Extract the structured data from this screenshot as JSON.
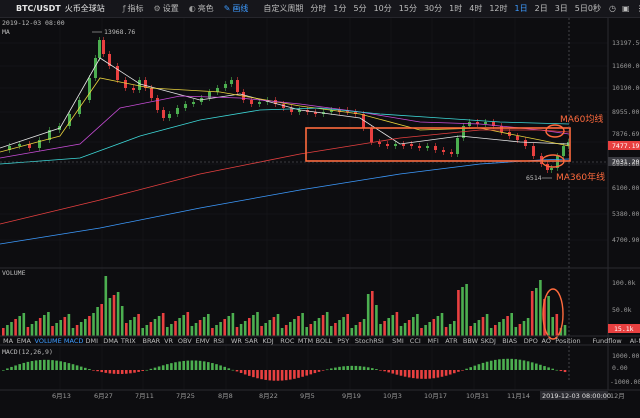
{
  "toolbar": {
    "symbol": "BTC/USDT",
    "exchange": "火币全球站",
    "buttons": [
      {
        "name": "indicator-button",
        "icon": "fx-icon",
        "glyph": "ƒ",
        "label": "指标"
      },
      {
        "name": "settings-button",
        "icon": "gear-icon",
        "glyph": "⚙",
        "label": "设置"
      },
      {
        "name": "color-button",
        "icon": "palette-icon",
        "glyph": "◐",
        "label": "亮色"
      },
      {
        "name": "draw-button",
        "icon": "pen-icon",
        "glyph": "✎",
        "label": "画线",
        "active": true
      }
    ],
    "periods": [
      "自定义周期",
      "分时",
      "1分",
      "5分",
      "10分",
      "15分",
      "30分",
      "1时",
      "4时",
      "12时",
      "1日",
      "2日",
      "3日",
      "5日"
    ],
    "active_period": "1日",
    "countdown": "0秒",
    "right_icons": [
      "clock-icon",
      "lock-icon",
      "more-icon"
    ]
  },
  "price_pane": {
    "header": "2019-12-03 08:00",
    "ma_label": "MA",
    "y_ticks": [
      "13197.50",
      "11600.00",
      "10190.00",
      "8955.00",
      "7876.69",
      "6930.00",
      "6100.00",
      "5380.00",
      "4700.90"
    ],
    "current_price_tag": "7477.19",
    "ref_price_tag": "7031.20",
    "high_label": "13968.76",
    "low_label": "6514"
  },
  "annotations": {
    "ma60": "MA60均线",
    "ma360": "MA360年线"
  },
  "volume_pane": {
    "label": "VOLUME",
    "y_ticks": [
      "100.0k",
      "50.0k"
    ],
    "value_tag": "15.1k"
  },
  "indicator_bar": {
    "items": [
      "MA",
      "EMA",
      "VOLUME",
      "MACD",
      "DMI",
      "DMA",
      "TRIX",
      "BRAR",
      "VR",
      "OBV",
      "EMV",
      "RSI",
      "WR",
      "SAR",
      "KDJ",
      "ROC",
      "MTM",
      "BOLL",
      "PSY",
      "StochRSI",
      "SMI",
      "CCI",
      "MFI",
      "ATR",
      "BBW",
      "SKDJ",
      "BIAS",
      "DPO",
      "AO",
      "Position",
      "Fundflow",
      "AI-NetVOL"
    ],
    "active": [
      "VOLUME",
      "MACD"
    ]
  },
  "macd_pane": {
    "label": "MACD(12,26,9)",
    "y_ticks": [
      "1000.00",
      "0.00",
      "-1000.00"
    ]
  },
  "x_axis": {
    "labels": [
      "6月13",
      "6月27",
      "7月11",
      "7月25",
      "8月8",
      "8月22",
      "9月5",
      "9月19",
      "10月3",
      "10月17",
      "10月31",
      "11月14"
    ],
    "cursor_date": "2019-12-03 08:00:00",
    "last_label": "12月"
  },
  "colors": {
    "up": "#4caf50",
    "down": "#e84040",
    "accent": "#3d9bff",
    "annotation": "#ff6a3d"
  }
}
